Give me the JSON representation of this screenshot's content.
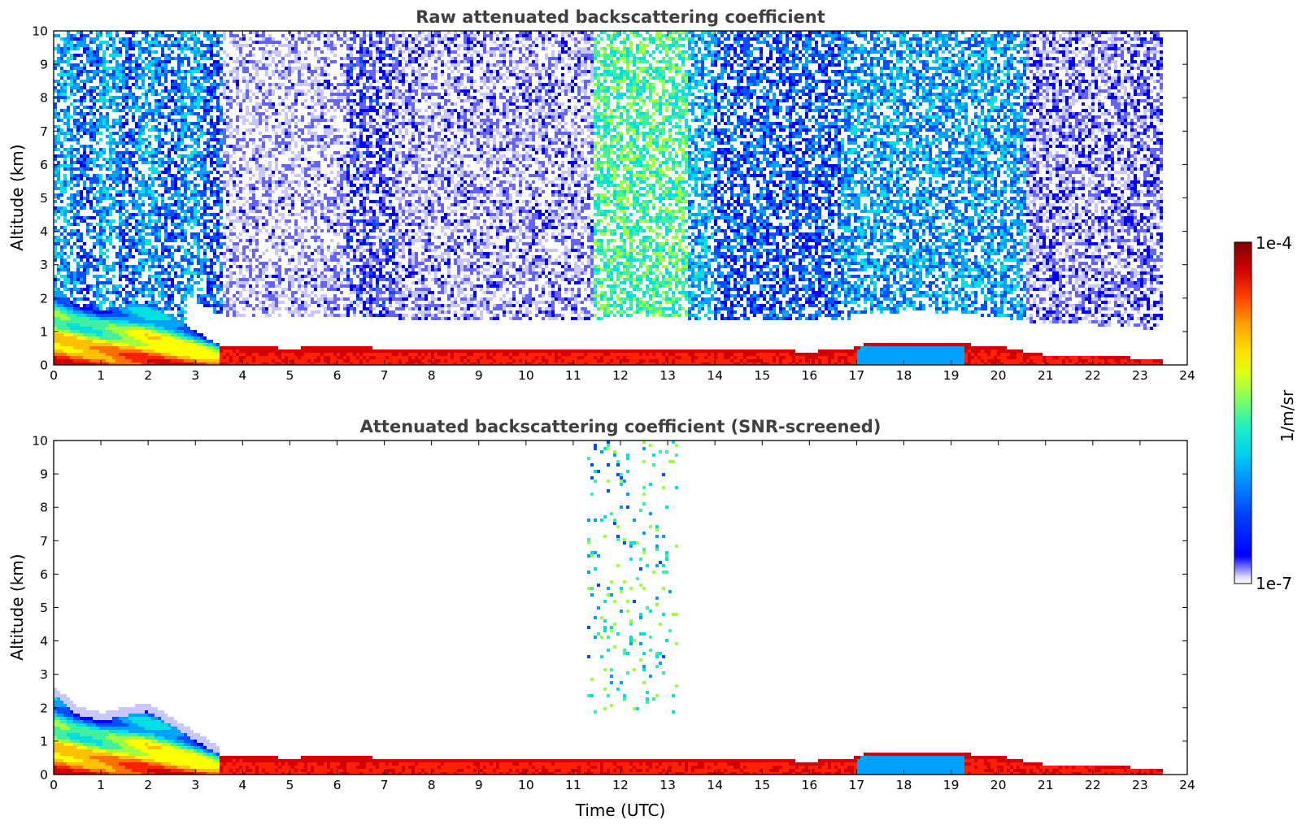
{
  "chart_data": [
    {
      "type": "heatmap",
      "title": "Raw attenuated backscattering coefficient",
      "ylabel": "Altitude (km)",
      "xlabel": "",
      "xlim": [
        0,
        24
      ],
      "ylim": [
        0,
        10
      ],
      "x_ticks": [
        "0",
        "1",
        "2",
        "3",
        "4",
        "5",
        "6",
        "7",
        "8",
        "9",
        "10",
        "11",
        "12",
        "13",
        "14",
        "15",
        "16",
        "17",
        "18",
        "19",
        "20",
        "21",
        "22",
        "23",
        "24"
      ],
      "y_ticks": [
        "0",
        "1",
        "2",
        "3",
        "4",
        "5",
        "6",
        "7",
        "8",
        "9",
        "10"
      ],
      "data_end_hour": 23.5,
      "boundary_layer_top_km": [
        [
          0,
          2.4
        ],
        [
          0.5,
          1.8
        ],
        [
          1,
          1.6
        ],
        [
          2,
          1.9
        ],
        [
          2.8,
          1.2
        ],
        [
          3.5,
          0.6
        ],
        [
          4,
          0.55
        ],
        [
          5,
          0.5
        ],
        [
          6,
          0.55
        ],
        [
          7,
          0.5
        ],
        [
          8,
          0.45
        ],
        [
          9,
          0.45
        ],
        [
          10,
          0.45
        ],
        [
          11,
          0.45
        ],
        [
          12,
          0.5
        ],
        [
          13,
          0.5
        ],
        [
          14,
          0.45
        ],
        [
          15,
          0.45
        ],
        [
          16,
          0.4
        ],
        [
          16.8,
          0.45
        ],
        [
          17.2,
          0.65
        ],
        [
          18,
          0.68
        ],
        [
          18.5,
          0.7
        ],
        [
          19,
          0.65
        ],
        [
          20,
          0.55
        ],
        [
          21,
          0.3
        ],
        [
          22,
          0.3
        ],
        [
          23,
          0.2
        ],
        [
          23.5,
          0.15
        ]
      ]
    },
    {
      "type": "heatmap",
      "title": "Attenuated backscattering coefficient (SNR-screened)",
      "ylabel": "Altitude (km)",
      "xlabel": "Time (UTC)",
      "xlim": [
        0,
        24
      ],
      "ylim": [
        0,
        10
      ],
      "x_ticks": [
        "0",
        "1",
        "2",
        "3",
        "4",
        "5",
        "6",
        "7",
        "8",
        "9",
        "10",
        "11",
        "12",
        "13",
        "14",
        "15",
        "16",
        "17",
        "18",
        "19",
        "20",
        "21",
        "22",
        "23",
        "24"
      ],
      "y_ticks": [
        "0",
        "1",
        "2",
        "3",
        "4",
        "5",
        "6",
        "7",
        "8",
        "9",
        "10"
      ],
      "data_end_hour": 23.5
    }
  ],
  "colorbar": {
    "label": "1/m/sr",
    "max_label": "1e-4",
    "min_label": "1e-7",
    "colors": [
      "#ffffff",
      "#c8c8ff",
      "#6464ff",
      "#0000ff",
      "#0050ff",
      "#00a0ff",
      "#00e0e0",
      "#40f0a0",
      "#a0ff40",
      "#ffff00",
      "#ffc000",
      "#ff7000",
      "#ff2000",
      "#d00000",
      "#800000"
    ]
  }
}
